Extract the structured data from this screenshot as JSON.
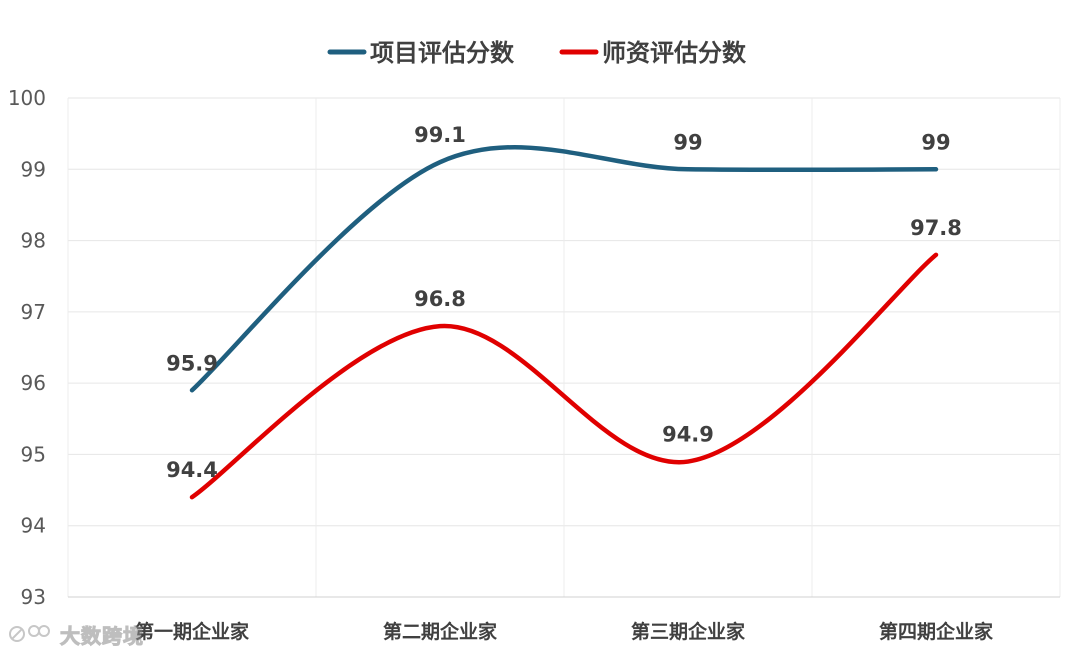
{
  "chart_data": {
    "type": "line",
    "smooth": true,
    "categories": [
      "第一期企业家",
      "第二期企业家",
      "第三期企业家",
      "第四期企业家"
    ],
    "series": [
      {
        "name": "项目评估分数",
        "values": [
          95.9,
          99.1,
          99,
          99
        ],
        "color": "#1f5f7f"
      },
      {
        "name": "师资评估分数",
        "values": [
          94.4,
          96.8,
          94.9,
          97.8
        ],
        "color": "#e00000"
      }
    ],
    "ylim": [
      93,
      100
    ],
    "yticks": [
      "93",
      "94",
      "95",
      "96",
      "97",
      "98",
      "99",
      "100"
    ],
    "data_labels": {
      "s0": [
        "95.9",
        "99.1",
        "99",
        "99"
      ],
      "s1": [
        "94.4",
        "96.8",
        "94.9",
        "97.8"
      ]
    },
    "legend_position": "top",
    "grid": true
  },
  "watermark": {
    "text": "大数跨境",
    "icon": "logo-mark-icon"
  }
}
